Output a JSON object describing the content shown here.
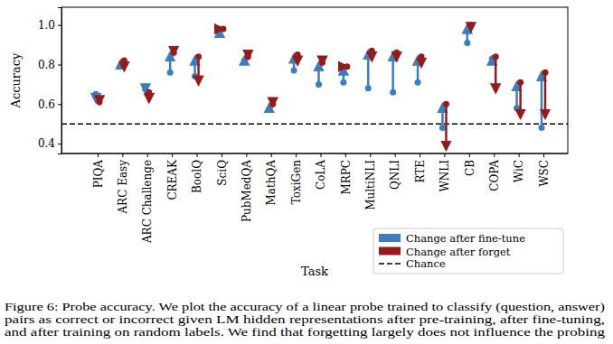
{
  "chart_data": {
    "type": "arrow",
    "x_label": "Task",
    "y_label": "Accuracy",
    "categories": [
      "PIQA",
      "ARC Easy",
      "ARC Challenge",
      "CREAK",
      "BoolQ",
      "SciQ",
      "PubMedQA",
      "MathQA",
      "ToxiGen",
      "CoLA",
      "MRPC",
      "MultiNLI",
      "QNLI",
      "RTE",
      "WNLI",
      "CB",
      "COPA",
      "WiC",
      "WSC"
    ],
    "series": [
      {
        "name": "Change after fine-tune",
        "color": "#3b7dbd",
        "marker": "circle",
        "start": [
          0.65,
          0.79,
          0.675,
          0.76,
          0.74,
          0.97,
          0.82,
          0.57,
          0.77,
          0.7,
          0.71,
          0.68,
          0.66,
          0.71,
          0.48,
          0.91,
          0.83,
          0.58,
          0.48
        ],
        "values": [
          0.61,
          0.82,
          0.66,
          0.86,
          0.84,
          0.98,
          0.84,
          0.6,
          0.85,
          0.81,
          0.79,
          0.87,
          0.86,
          0.84,
          0.6,
          1.0,
          0.84,
          0.71,
          0.76
        ]
      },
      {
        "name": "Change after forget",
        "color": "#961a1a",
        "marker": "circle",
        "values": [
          0.6,
          0.77,
          0.61,
          0.85,
          0.7,
          0.98,
          0.83,
          0.59,
          0.8,
          0.8,
          0.79,
          0.82,
          0.82,
          0.79,
          0.37,
          0.97,
          0.66,
          0.53,
          0.53
        ]
      }
    ],
    "reference_line": {
      "name": "Chance",
      "value": 0.5,
      "color": "#000000",
      "line_style": "dashed"
    },
    "ylim": [
      0.35,
      1.09
    ],
    "yticks": [
      0.4,
      0.6,
      0.8,
      {
        "value": 1.0,
        "label": "1.0"
      }
    ],
    "legend": "lower right",
    "caption": [
      "Figure 6: Probe accuracy. We plot the accuracy of a linear probe trained to classify (question, answer)",
      "pairs as correct or incorrect given LM hidden representations after pre-training, after fine-tuning,",
      "and after training on random labels. We find that forgetting largely does not influence the probing"
    ]
  }
}
